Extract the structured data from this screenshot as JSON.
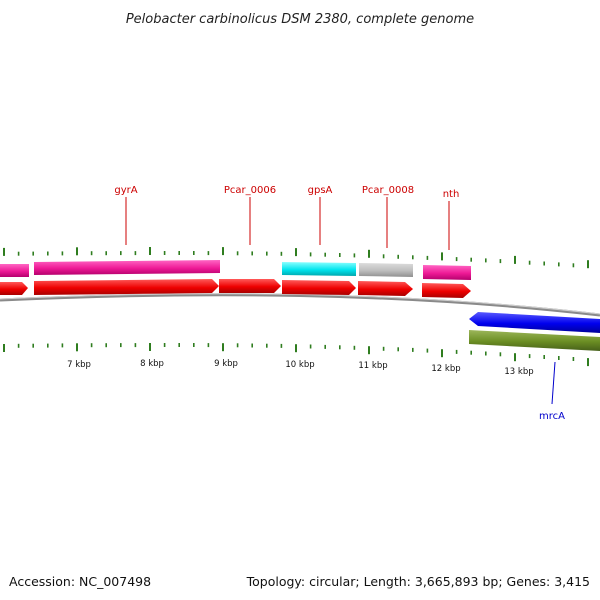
{
  "title": "Pelobacter carbinolicus DSM 2380, complete genome",
  "footer": {
    "accession": "Accession: NC_007498",
    "summary": "Topology: circular; Length: 3,665,893 bp; Genes: 3,415"
  },
  "colors": {
    "label_red": "#cc0000",
    "label_blue": "#0000cc",
    "tick_green": "#2f7d1f",
    "backbone": "#8a8a8a"
  },
  "ruler": {
    "labels": [
      "7 kbp",
      "8 kbp",
      "9 kbp",
      "10 kbp",
      "11 kbp",
      "12 kbp",
      "13 kbp"
    ]
  },
  "genes": [
    {
      "label": "gyrA",
      "color": "#cc0000"
    },
    {
      "label": "Pcar_0006",
      "color": "#cc0000"
    },
    {
      "label": "gpsA",
      "color": "#cc0000"
    },
    {
      "label": "Pcar_0008",
      "color": "#cc0000"
    },
    {
      "label": "nth",
      "color": "#cc0000"
    },
    {
      "label": "mrcA",
      "color": "#0000cc"
    }
  ]
}
